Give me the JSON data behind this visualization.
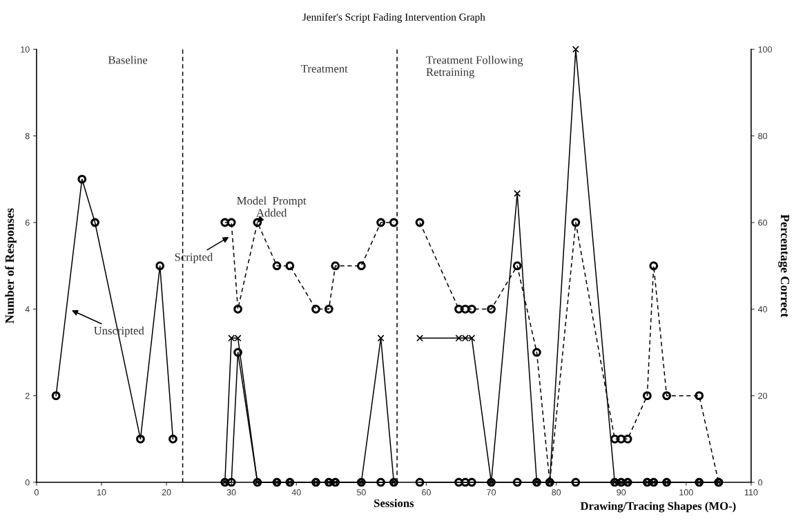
{
  "chart_data": {
    "type": "line",
    "title": "Jennifer's Script Fading Intervention Graph",
    "xlabel": "Sessions",
    "ylabel": "Number of Responses",
    "y2label": "Percentage Correct",
    "xlim": [
      0,
      110
    ],
    "xticks": [
      0,
      10,
      20,
      30,
      40,
      50,
      60,
      70,
      80,
      90,
      100,
      110
    ],
    "ylim": [
      0,
      10
    ],
    "yticks": [
      0,
      2,
      4,
      6,
      8,
      10
    ],
    "y2lim": [
      0,
      100
    ],
    "y2ticks": [
      0,
      20,
      40,
      60,
      80,
      100
    ],
    "grid": false,
    "series": [
      {
        "color": "#000000",
        "marker": "circle",
        "line_style": "solid",
        "x": [
          3,
          7,
          9,
          16,
          19,
          21
        ],
        "values": [
          2,
          7,
          6,
          1,
          5,
          1
        ]
      },
      {
        "color": "#000000",
        "marker": "circle",
        "line_style": "solid",
        "x": [
          29,
          30,
          31,
          34,
          37,
          39,
          43,
          45,
          46,
          50,
          53,
          55
        ],
        "values": [
          0,
          0,
          3,
          0,
          0,
          0,
          0,
          0,
          0,
          0,
          0,
          0
        ]
      },
      {
        "color": "#000000",
        "marker": "circle",
        "line_style": "solid",
        "x": [
          59,
          65,
          66,
          67,
          70,
          74,
          77,
          79,
          83,
          89,
          90,
          91,
          94,
          95,
          97,
          102,
          105
        ],
        "values": [
          0,
          0,
          0,
          0,
          0,
          0,
          0,
          0,
          0,
          0,
          0,
          0,
          0,
          0,
          0,
          0,
          0
        ]
      },
      {
        "color": "#000000",
        "marker": "circle",
        "line_style": "dashed",
        "x": [
          29,
          30,
          31,
          34,
          37,
          39,
          43,
          45,
          46,
          50,
          53,
          55
        ],
        "values": [
          6,
          6,
          4,
          6,
          5,
          5,
          4,
          4,
          5,
          5,
          6,
          6
        ]
      },
      {
        "color": "#000000",
        "marker": "circle",
        "line_style": "dashed",
        "x": [
          59,
          65,
          66,
          67,
          70,
          74,
          77,
          79,
          83,
          89,
          90,
          91,
          94,
          95,
          97,
          102,
          105
        ],
        "values": [
          6,
          4,
          4,
          4,
          4,
          5,
          3,
          0,
          6,
          1,
          1,
          1,
          2,
          5,
          2,
          2,
          0
        ]
      },
      {
        "color": "#000000",
        "marker": "cross",
        "line_style": "solid",
        "axis": "y2",
        "x": [
          29,
          30,
          31,
          34,
          37,
          39,
          43,
          45,
          46,
          50,
          53,
          55
        ],
        "values": [
          0,
          33.3,
          33.3,
          0,
          0,
          0,
          0,
          0,
          0,
          0,
          33.3,
          0
        ]
      },
      {
        "color": "#000000",
        "marker": "cross",
        "line_style": "solid",
        "axis": "y2",
        "x": [
          59,
          65,
          66,
          67,
          70,
          74,
          77,
          79,
          83,
          89,
          90,
          91,
          94,
          95,
          97,
          102,
          105
        ],
        "values": [
          33.3,
          33.3,
          33.3,
          33.3,
          0,
          66.7,
          0,
          0,
          100,
          0,
          0,
          0,
          0,
          0,
          0,
          0,
          0
        ]
      }
    ],
    "ref_lines": [
      {
        "axis": "x",
        "value": 22.5,
        "line_style": "dashed",
        "color": "#000000"
      },
      {
        "axis": "x",
        "value": 55.5,
        "line_style": "dashed",
        "color": "#000000"
      }
    ],
    "annotations": [
      "Baseline",
      "Treatment",
      "Treatment Following\nRetraining",
      {
        "text": "Unscripted",
        "x": 5,
        "y": 4
      },
      {
        "text": "Scripted",
        "x": 30,
        "y": 5.7
      },
      {
        "text": "Model  Prompt\nAdded",
        "x": 34,
        "y": 6
      },
      "Drawing/Tracing Shapes (MO-)"
    ]
  }
}
